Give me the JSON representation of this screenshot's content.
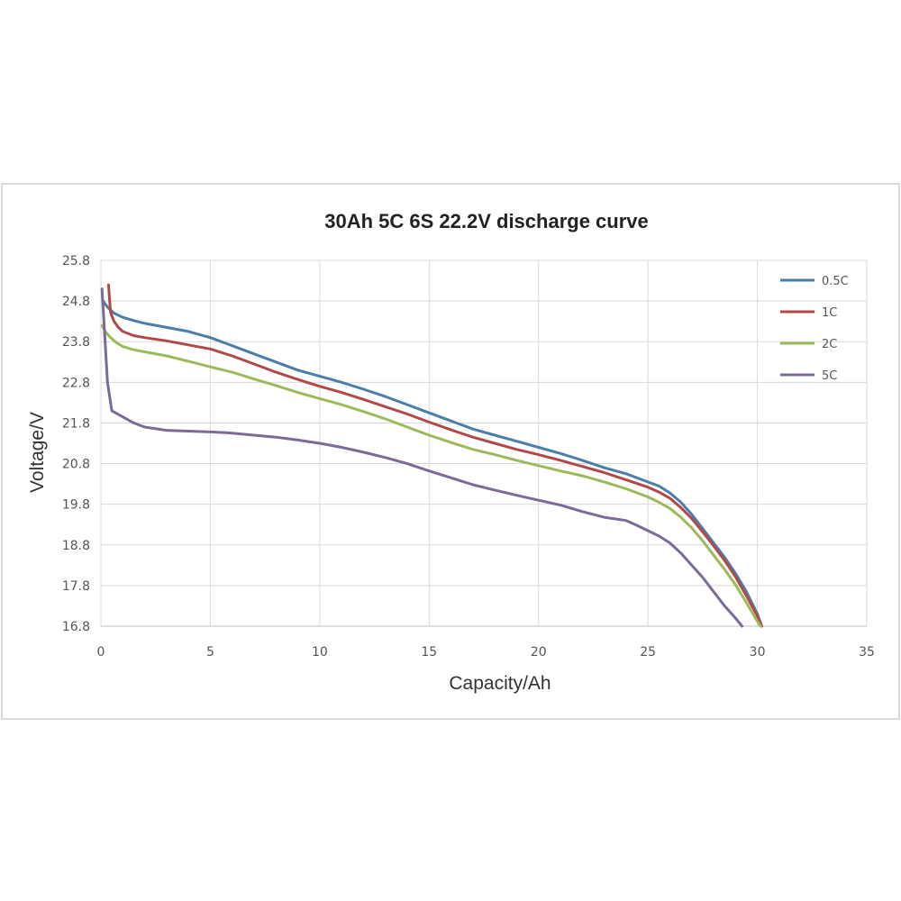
{
  "chart_data": {
    "type": "line",
    "title": "30Ah 5C 6S 22.2V discharge curve",
    "xlabel": "Capacity/Ah",
    "ylabel": "Voltage/V",
    "xlim": [
      0,
      35
    ],
    "ylim": [
      16.8,
      25.8
    ],
    "xticks": [
      "0",
      "5",
      "10",
      "15",
      "20",
      "25",
      "30",
      "35"
    ],
    "yticks": [
      "25.8",
      "24.8",
      "23.8",
      "22.8",
      "21.8",
      "20.8",
      "19.8",
      "18.8",
      "17.8",
      "16.8"
    ],
    "grid": true,
    "legend_position": "top-right",
    "colors": {
      "0.5C": "#4a7eab",
      "1C": "#b14a46",
      "2C": "#9bbb59",
      "5C": "#7c6a98"
    },
    "series": [
      {
        "name": "0.5C",
        "x": [
          0.1,
          0.3,
          0.6,
          1,
          1.5,
          2,
          3,
          4,
          5,
          6,
          7,
          8,
          9,
          10,
          11,
          12,
          13,
          14,
          15,
          16,
          17,
          18,
          19,
          20,
          21,
          22,
          23,
          24,
          25,
          25.5,
          26,
          26.5,
          27,
          27.5,
          28,
          28.5,
          29,
          29.5,
          30,
          30.2
        ],
        "y": [
          24.8,
          24.65,
          24.5,
          24.4,
          24.32,
          24.25,
          24.15,
          24.05,
          23.9,
          23.7,
          23.5,
          23.3,
          23.1,
          22.95,
          22.8,
          22.63,
          22.45,
          22.25,
          22.05,
          21.85,
          21.65,
          21.5,
          21.35,
          21.2,
          21.05,
          20.88,
          20.7,
          20.55,
          20.35,
          20.25,
          20.08,
          19.85,
          19.55,
          19.2,
          18.85,
          18.5,
          18.1,
          17.65,
          17.1,
          16.8
        ]
      },
      {
        "name": "1C",
        "x": [
          0.35,
          0.4,
          0.45,
          0.6,
          0.8,
          1,
          1.5,
          2,
          3,
          4,
          5,
          6,
          7,
          8,
          9,
          10,
          11,
          12,
          13,
          14,
          15,
          16,
          17,
          18,
          19,
          20,
          21,
          22,
          23,
          24,
          25,
          25.5,
          26,
          26.5,
          27,
          27.5,
          28,
          28.5,
          29,
          29.5,
          30,
          30.2
        ],
        "y": [
          25.2,
          24.8,
          24.5,
          24.3,
          24.15,
          24.05,
          23.95,
          23.9,
          23.82,
          23.72,
          23.62,
          23.45,
          23.25,
          23.05,
          22.87,
          22.7,
          22.55,
          22.38,
          22.2,
          22.02,
          21.82,
          21.63,
          21.45,
          21.3,
          21.15,
          21.02,
          20.88,
          20.73,
          20.58,
          20.4,
          20.22,
          20.1,
          19.95,
          19.72,
          19.45,
          19.12,
          18.78,
          18.42,
          18.02,
          17.55,
          17.05,
          16.8
        ]
      },
      {
        "name": "2C",
        "x": [
          0.05,
          0.2,
          0.4,
          0.7,
          1,
          1.5,
          2,
          3,
          4,
          5,
          6,
          7,
          8,
          9,
          10,
          11,
          12,
          13,
          14,
          15,
          16,
          17,
          18,
          19,
          20,
          21,
          22,
          23,
          24,
          25,
          25.5,
          26,
          26.5,
          27,
          27.5,
          28,
          28.5,
          29,
          29.5,
          30,
          30.15
        ],
        "y": [
          24.2,
          24.05,
          23.92,
          23.78,
          23.68,
          23.6,
          23.55,
          23.45,
          23.32,
          23.18,
          23.05,
          22.88,
          22.72,
          22.55,
          22.4,
          22.25,
          22.08,
          21.9,
          21.7,
          21.5,
          21.32,
          21.15,
          21.02,
          20.88,
          20.75,
          20.62,
          20.5,
          20.35,
          20.18,
          19.98,
          19.85,
          19.7,
          19.48,
          19.22,
          18.9,
          18.55,
          18.2,
          17.82,
          17.38,
          16.92,
          16.8
        ]
      },
      {
        "name": "5C",
        "x": [
          0.05,
          0.15,
          0.3,
          0.5,
          1,
          1.5,
          2,
          3,
          4,
          5,
          6,
          7,
          8,
          9,
          10,
          11,
          12,
          13,
          14,
          15,
          16,
          17,
          18,
          19,
          20,
          21,
          22,
          23,
          24,
          24.5,
          25,
          25.5,
          26,
          26.5,
          27,
          27.5,
          28,
          28.5,
          29,
          29.3
        ],
        "y": [
          25.1,
          24.2,
          22.8,
          22.1,
          21.95,
          21.8,
          21.7,
          21.62,
          21.6,
          21.58,
          21.55,
          21.5,
          21.45,
          21.38,
          21.3,
          21.2,
          21.08,
          20.95,
          20.8,
          20.62,
          20.45,
          20.28,
          20.15,
          20.02,
          19.9,
          19.78,
          19.62,
          19.48,
          19.4,
          19.28,
          19.15,
          19.02,
          18.85,
          18.6,
          18.3,
          18.0,
          17.65,
          17.3,
          17.0,
          16.8
        ]
      }
    ]
  }
}
